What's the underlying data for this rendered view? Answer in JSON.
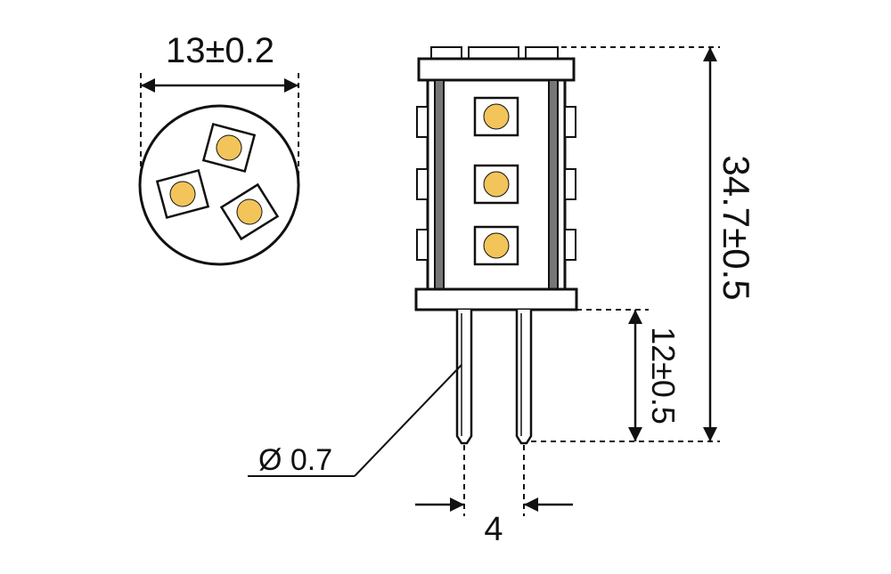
{
  "dimensions": {
    "diameter": "13±0.2",
    "total_length": "34.7±0.5",
    "pin_length": "12±0.5",
    "pin_diameter": "Ø 0.7",
    "pin_spacing": "4"
  },
  "colors": {
    "line": "#111111",
    "led": "#f2c45a",
    "background": "#ffffff"
  }
}
